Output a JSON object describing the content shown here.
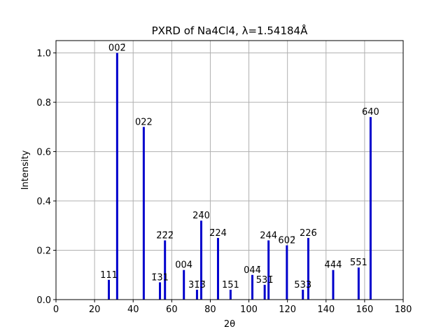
{
  "chart_data": {
    "type": "bar",
    "title": "PXRD of Na4Cl4, λ=1.54184Å",
    "xlabel": "2θ",
    "ylabel": "Intensity",
    "xlim": [
      0,
      180
    ],
    "ylim": [
      0,
      1.05
    ],
    "xticks": [
      "0",
      "20",
      "40",
      "60",
      "80",
      "100",
      "120",
      "140",
      "160",
      "180"
    ],
    "yticks": [
      "0.0",
      "0.2",
      "0.4",
      "0.6",
      "0.8",
      "1.0"
    ],
    "grid": true,
    "bar_color": "#0000cc",
    "peaks": [
      {
        "x": 27.4,
        "y": 0.08,
        "label": "111"
      },
      {
        "x": 31.7,
        "y": 1.0,
        "label": "002̄"
      },
      {
        "x": 45.5,
        "y": 0.7,
        "label": "022"
      },
      {
        "x": 53.9,
        "y": 0.07,
        "label": "1̄31"
      },
      {
        "x": 56.5,
        "y": 0.24,
        "label": "2̄2̄2̄"
      },
      {
        "x": 66.3,
        "y": 0.12,
        "label": "004"
      },
      {
        "x": 73.1,
        "y": 0.04,
        "label": "31̄3̄"
      },
      {
        "x": 75.3,
        "y": 0.32,
        "label": "24̄0"
      },
      {
        "x": 84.0,
        "y": 0.25,
        "label": "2̄24"
      },
      {
        "x": 90.5,
        "y": 0.04,
        "label": "151"
      },
      {
        "x": 101.8,
        "y": 0.1,
        "label": "044̄"
      },
      {
        "x": 108.2,
        "y": 0.06,
        "label": "5̄31̄"
      },
      {
        "x": 110.2,
        "y": 0.24,
        "label": "244"
      },
      {
        "x": 119.7,
        "y": 0.22,
        "label": "6̄02̄"
      },
      {
        "x": 128.0,
        "y": 0.04,
        "label": "533"
      },
      {
        "x": 130.8,
        "y": 0.25,
        "label": "226̄"
      },
      {
        "x": 143.7,
        "y": 0.12,
        "label": "4̄4̄4̄"
      },
      {
        "x": 156.9,
        "y": 0.13,
        "label": "5̄5̄1"
      },
      {
        "x": 163.1,
        "y": 0.74,
        "label": "6̄40"
      }
    ]
  }
}
